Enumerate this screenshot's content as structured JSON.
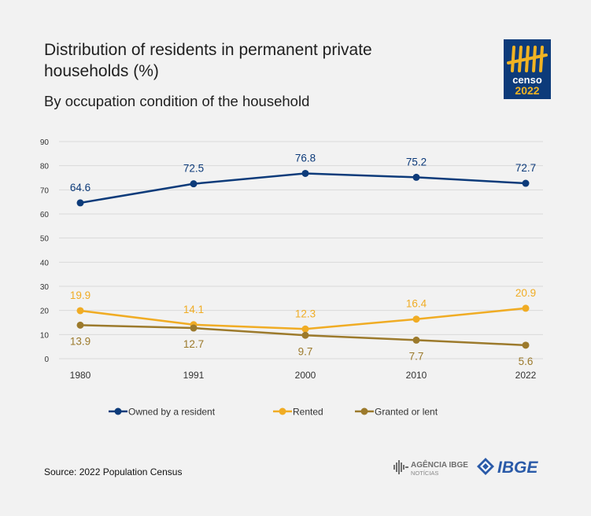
{
  "title": "Distribution of residents in permanent private households (%)",
  "subtitle": "By occupation condition of the household",
  "source": "Source: 2022 Population Census",
  "logos": {
    "censo_top": "censo",
    "censo_bottom": "2022",
    "agencia_line1": "AGÊNCIA IBGE",
    "agencia_line2": "NOTÍCIAS",
    "ibge": "IBGE"
  },
  "colors": {
    "owned": "#0d3b7a",
    "rented": "#f0ac24",
    "granted": "#9c7a2c",
    "censo_bg": "#0d3b7a",
    "censo_accent": "#f0b323",
    "ibge_blue": "#2a5aa8"
  },
  "chart_data": {
    "type": "line",
    "x": [
      "1980",
      "1991",
      "2000",
      "2010",
      "2022"
    ],
    "ylim": [
      0,
      90
    ],
    "yticks": [
      0,
      10,
      20,
      30,
      40,
      50,
      60,
      70,
      80,
      90
    ],
    "grid": true,
    "legend_position": "bottom",
    "series": [
      {
        "name": "Owned by a resident",
        "values": [
          64.6,
          72.5,
          76.8,
          75.2,
          72.7
        ],
        "color": "#0d3b7a",
        "labels": [
          "64.6",
          "72.5",
          "76.8",
          "75.2",
          "72.7"
        ]
      },
      {
        "name": "Rented",
        "values": [
          19.9,
          14.1,
          12.3,
          16.4,
          20.9
        ],
        "color": "#f0ac24",
        "labels": [
          "19.9",
          "14.1",
          "12.3",
          "16.4",
          "20.9"
        ]
      },
      {
        "name": "Granted or lent",
        "values": [
          13.9,
          12.7,
          9.7,
          7.7,
          5.6
        ],
        "color": "#9c7a2c",
        "labels": [
          "13.9",
          "12.7",
          "9.7",
          "7.7",
          "5.6"
        ]
      }
    ]
  }
}
